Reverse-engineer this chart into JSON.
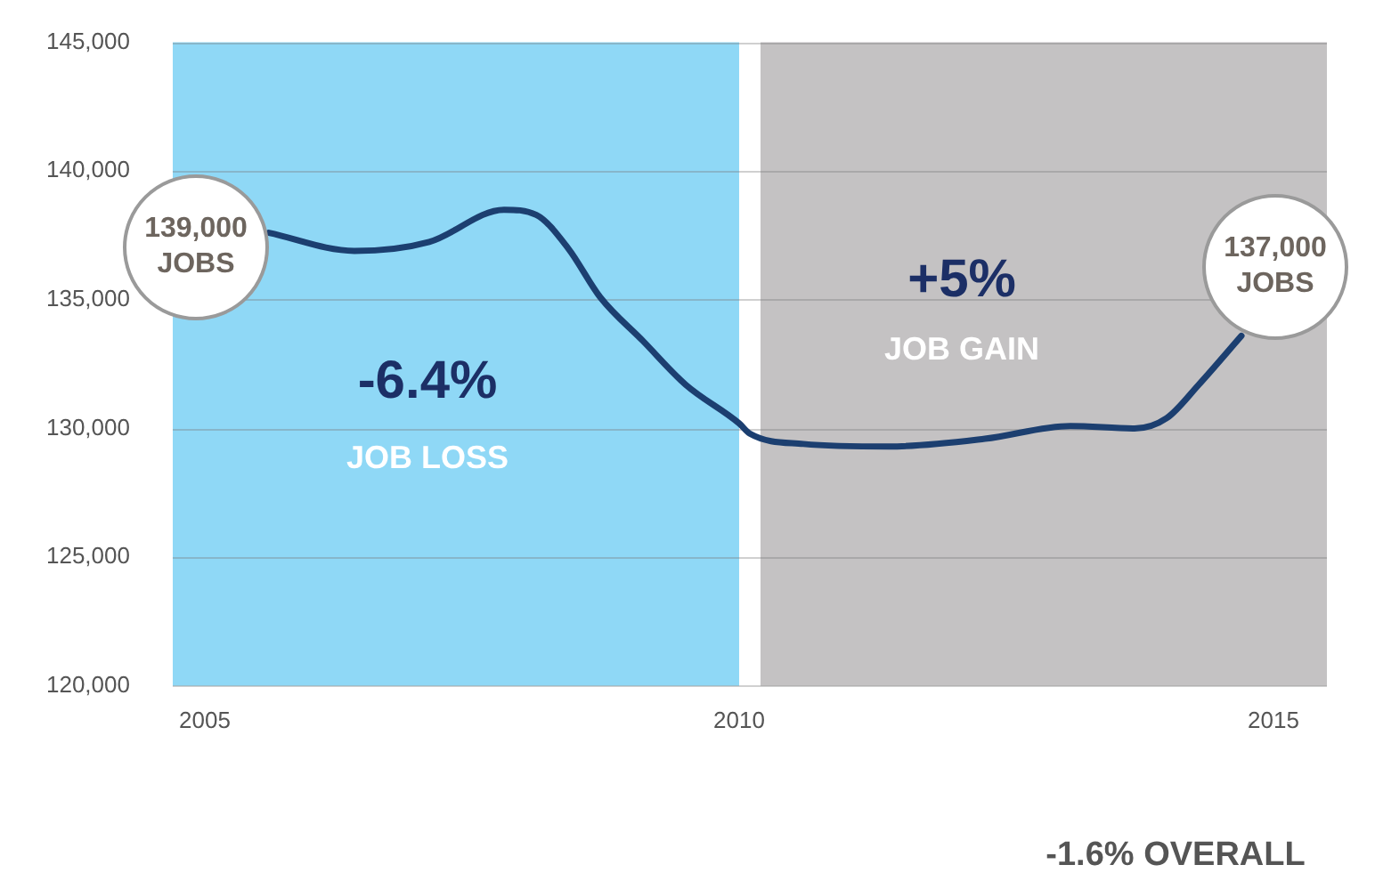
{
  "chart_data": {
    "type": "line",
    "x": [
      2005.6,
      2006.4,
      2007.1,
      2007.8,
      2008.1,
      2008.4,
      2008.7,
      2009.1,
      2009.5,
      2010,
      2010.1,
      2010.6,
      2011.4,
      2012.3,
      2013.1,
      2013.7,
      2014,
      2014.3,
      2014.7
    ],
    "series": [
      {
        "color": "#1c3f70",
        "values": [
          137600,
          136900,
          137250,
          138500,
          138300,
          137000,
          135100,
          133400,
          131700,
          130200,
          129800,
          129400,
          129300,
          129600,
          130100,
          130000,
          130400,
          131700,
          133600
        ]
      }
    ],
    "xlim": [
      2004.7,
      2015.5
    ],
    "xticks": [
      2005,
      2010,
      2015
    ],
    "ylim": [
      120000,
      145000
    ],
    "yticks": [
      {
        "value": 120000,
        "label": "120,000"
      },
      {
        "value": 125000,
        "label": "125,000"
      },
      {
        "value": 130000,
        "label": "130,000"
      },
      {
        "value": 135000,
        "label": "135,000"
      },
      {
        "value": 140000,
        "label": "140,000"
      },
      {
        "value": 145000,
        "label": "145,000"
      }
    ],
    "bands": [
      {
        "axis": "x",
        "from": 2004.7,
        "to": 2010,
        "color": "#8fd8f6"
      },
      {
        "axis": "x",
        "from": 2010.2,
        "to": 2015.5,
        "color": "#c4c2c3"
      }
    ],
    "annotations": [
      "139,000 JOBS",
      "137,000 JOBS",
      "-6.4%",
      "JOB LOSS",
      "+5%",
      "JOB GAIN",
      "-1.6% OVERALL"
    ],
    "grid": "y",
    "legend": false,
    "marker": "none",
    "line_style": "solid"
  }
}
